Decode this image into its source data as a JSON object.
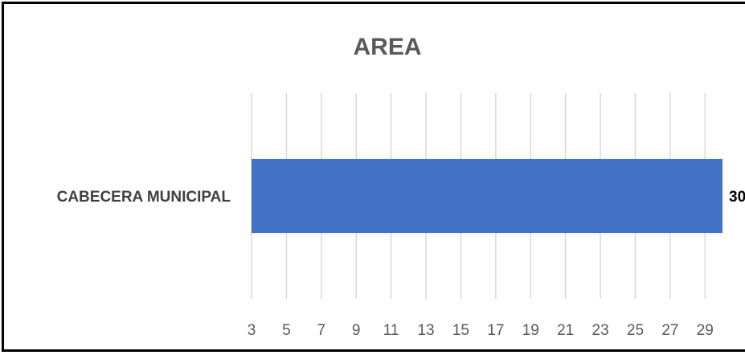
{
  "chart_data": {
    "type": "bar",
    "orientation": "horizontal",
    "title": "AREA",
    "categories": [
      "CABECERA MUNICIPAL"
    ],
    "values": [
      30
    ],
    "data_labels": [
      "30"
    ],
    "xlim": [
      3,
      30
    ],
    "xticks": [
      3,
      5,
      7,
      9,
      11,
      13,
      15,
      17,
      19,
      21,
      23,
      25,
      27,
      29
    ],
    "grid": true,
    "legend": "none",
    "bar_color": "#4472C4",
    "grid_color": "#D9D9D9"
  }
}
